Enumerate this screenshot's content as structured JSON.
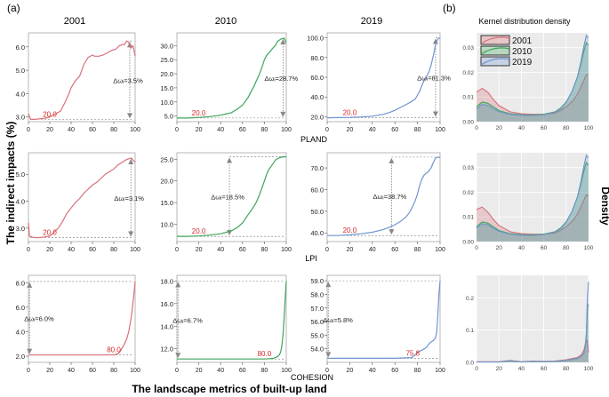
{
  "figure": {
    "panel_a_label": "(a)",
    "panel_b_label": "(b)",
    "y_label": "The indirect impacts (%)",
    "x_label": "The landscape metrics of built-up land",
    "density_title": "Kernel  distribution density",
    "density_ylabel": "Density",
    "years": [
      "2001",
      "2010",
      "2019"
    ],
    "metrics": [
      "PLAND",
      "LPI",
      "COHESION"
    ],
    "colors": {
      "2001": "#d9707a",
      "2010": "#3da55a",
      "2019": "#6f95cf"
    },
    "legend": [
      "2001",
      "2010",
      "2019"
    ]
  },
  "chart_data": [
    {
      "type": "line",
      "row": 0,
      "col": 0,
      "metric": "PLAND",
      "year": "2001",
      "xlim": [
        0,
        100
      ],
      "ylim": [
        2.8,
        6.6
      ],
      "yticks": [
        3.0,
        4.0,
        5.0,
        6.0
      ],
      "xticks": [
        0,
        20,
        40,
        60,
        80,
        100
      ],
      "x": [
        0,
        2,
        6,
        10,
        14,
        18,
        20,
        22,
        26,
        30,
        34,
        38,
        40,
        44,
        48,
        52,
        56,
        60,
        62,
        66,
        70,
        74,
        78,
        82,
        85,
        88,
        90,
        92,
        94,
        96,
        98,
        100
      ],
      "y": [
        3.15,
        2.9,
        2.9,
        2.92,
        2.94,
        2.97,
        3.0,
        3.05,
        3.15,
        3.25,
        3.6,
        4.0,
        4.25,
        4.55,
        4.75,
        5.25,
        5.55,
        5.65,
        5.6,
        5.6,
        5.65,
        5.75,
        5.85,
        5.9,
        6.05,
        6.1,
        6.1,
        6.25,
        6.2,
        5.95,
        6.05,
        5.6
      ],
      "threshold_label": "20.0",
      "threshold_x": 20,
      "delta_label": "Δωᵢ=3.5%",
      "delta_x": 95
    },
    {
      "type": "line",
      "row": 0,
      "col": 1,
      "metric": "PLAND",
      "year": "2010",
      "xlim": [
        0,
        100
      ],
      "ylim": [
        3,
        34.5
      ],
      "yticks": [
        5.0,
        10.0,
        15.0,
        20.0,
        25.0,
        30.0
      ],
      "xticks": [
        0,
        20,
        40,
        60,
        80,
        100
      ],
      "x": [
        0,
        10,
        20,
        30,
        40,
        50,
        55,
        60,
        65,
        68,
        70,
        72,
        75,
        78,
        80,
        82,
        85,
        88,
        90,
        92,
        95,
        98,
        100
      ],
      "y": [
        4.3,
        4.3,
        4.5,
        4.8,
        5.3,
        6.2,
        7.4,
        8.9,
        11.5,
        13.8,
        15.2,
        17.0,
        19.5,
        22.5,
        25.0,
        26.5,
        27.8,
        29.2,
        30.0,
        31.5,
        32.3,
        32.6,
        31.0
      ],
      "threshold_label": "20.0",
      "threshold_x": 20,
      "delta_label": "Δωᵢ=28.7%",
      "delta_x": 97
    },
    {
      "type": "line",
      "row": 0,
      "col": 2,
      "metric": "PLAND",
      "year": "2019",
      "xlim": [
        0,
        100
      ],
      "ylim": [
        15,
        105
      ],
      "yticks": [
        20.0,
        40.0,
        60.0,
        80.0,
        100.0
      ],
      "xticks": [
        0,
        20,
        40,
        60,
        80,
        100
      ],
      "x": [
        0,
        10,
        20,
        30,
        40,
        50,
        55,
        60,
        65,
        70,
        74,
        78,
        80,
        82,
        84,
        86,
        88,
        90,
        92,
        94,
        96,
        98,
        100
      ],
      "y": [
        19.0,
        19.1,
        19.3,
        19.8,
        20.6,
        22.5,
        24.3,
        26.5,
        29.5,
        32.5,
        35.0,
        38.0,
        42.0,
        46.0,
        52.0,
        57.0,
        61.0,
        65.0,
        72.0,
        82.0,
        93.0,
        99.0,
        100.0
      ],
      "threshold_label": "20.0",
      "threshold_x": 20,
      "delta_label": "Δωᵢ=81.3%",
      "delta_x": 96
    },
    {
      "type": "line",
      "row": 1,
      "col": 0,
      "metric": "LPI",
      "year": "2001",
      "xlim": [
        0,
        100
      ],
      "ylim": [
        2.5,
        5.8
      ],
      "yticks": [
        3.0,
        4.0,
        5.0
      ],
      "xticks": [
        0,
        20,
        40,
        60,
        80,
        100
      ],
      "x": [
        0,
        1,
        5,
        10,
        15,
        20,
        24,
        28,
        32,
        36,
        40,
        44,
        48,
        52,
        56,
        60,
        64,
        68,
        72,
        76,
        80,
        84,
        88,
        92,
        96,
        100
      ],
      "y": [
        3.2,
        2.7,
        2.65,
        2.65,
        2.67,
        2.7,
        2.85,
        3.0,
        3.25,
        3.55,
        3.75,
        3.95,
        4.1,
        4.3,
        4.45,
        4.6,
        4.7,
        4.85,
        5.0,
        5.1,
        5.2,
        5.35,
        5.45,
        5.55,
        5.6,
        5.45
      ],
      "threshold_label": "20.0",
      "threshold_x": 20,
      "delta_label": "Δωᵢ=3.1%",
      "delta_x": 96
    },
    {
      "type": "line",
      "row": 1,
      "col": 1,
      "metric": "LPI",
      "year": "2010",
      "xlim": [
        0,
        100
      ],
      "ylim": [
        6,
        26.5
      ],
      "yticks": [
        10.0,
        15.0,
        20.0,
        25.0
      ],
      "xticks": [
        0,
        20,
        40,
        60,
        80,
        100
      ],
      "x": [
        0,
        10,
        20,
        30,
        40,
        50,
        55,
        60,
        64,
        68,
        72,
        75,
        78,
        80,
        82,
        84,
        86,
        88,
        90,
        93,
        96,
        100
      ],
      "y": [
        7.2,
        7.2,
        7.3,
        7.5,
        7.8,
        8.5,
        9.2,
        10.3,
        11.8,
        13.2,
        14.8,
        16.5,
        18.5,
        20.0,
        21.5,
        22.6,
        23.3,
        24.0,
        24.8,
        25.3,
        25.5,
        25.6
      ],
      "threshold_label": "20.0",
      "threshold_x": 20,
      "delta_label": "Δωᵢ=18.5%",
      "delta_x": 48
    },
    {
      "type": "line",
      "row": 1,
      "col": 2,
      "metric": "LPI",
      "year": "2019",
      "xlim": [
        0,
        100
      ],
      "ylim": [
        36,
        77
      ],
      "yticks": [
        40.0,
        50.0,
        60.0,
        70.0
      ],
      "xticks": [
        0,
        20,
        40,
        60,
        80,
        100
      ],
      "x": [
        0,
        10,
        20,
        30,
        40,
        50,
        55,
        60,
        65,
        70,
        73,
        76,
        78,
        80,
        82,
        84,
        86,
        88,
        90,
        92,
        94,
        96,
        98,
        100
      ],
      "y": [
        38.8,
        38.8,
        39.1,
        39.6,
        40.3,
        41.6,
        42.6,
        43.8,
        45.3,
        47.5,
        49.5,
        52.5,
        55.0,
        58.0,
        62.0,
        65.0,
        66.8,
        67.6,
        68.5,
        70.0,
        72.5,
        74.5,
        75.0,
        74.8
      ],
      "threshold_label": "20.0",
      "threshold_x": 20,
      "delta_label": "Δωᵢ=38.7%",
      "delta_x": 57
    },
    {
      "type": "line",
      "row": 2,
      "col": 0,
      "metric": "COHESION",
      "year": "2001",
      "xlim": [
        0,
        100
      ],
      "ylim": [
        1.5,
        8.6
      ],
      "yticks": [
        2.0,
        4.0,
        6.0,
        8.0
      ],
      "xticks": [
        0,
        20,
        40,
        60,
        80,
        100
      ],
      "x": [
        0,
        20,
        40,
        60,
        80,
        84,
        86,
        88,
        90,
        92,
        94,
        95,
        96,
        97,
        98,
        99,
        100
      ],
      "y": [
        2.1,
        2.1,
        2.1,
        2.1,
        2.1,
        2.2,
        2.4,
        2.7,
        3.0,
        3.4,
        4.0,
        4.5,
        5.0,
        5.6,
        6.4,
        7.2,
        8.1
      ],
      "threshold_label": "80.0",
      "threshold_x": 80,
      "delta_label": "Δωᵢ=6.0%",
      "delta_x": 0
    },
    {
      "type": "line",
      "row": 2,
      "col": 1,
      "metric": "COHESION",
      "year": "2010",
      "xlim": [
        0,
        100
      ],
      "ylim": [
        10.8,
        18.5
      ],
      "yticks": [
        12.0,
        14.0,
        16.0,
        18.0
      ],
      "xticks": [
        0,
        20,
        40,
        60,
        80,
        100
      ],
      "x": [
        0,
        20,
        40,
        60,
        80,
        88,
        92,
        94,
        95,
        96,
        97,
        98,
        99,
        100
      ],
      "y": [
        11.1,
        11.1,
        11.1,
        11.1,
        11.1,
        11.15,
        11.3,
        11.5,
        11.8,
        12.3,
        13.2,
        14.6,
        16.5,
        18.0
      ],
      "threshold_label": "80.0",
      "threshold_x": 80,
      "delta_label": "Δωᵢ=6.7%",
      "delta_x": 0
    },
    {
      "type": "line",
      "row": 2,
      "col": 2,
      "metric": "COHESION",
      "year": "2019",
      "xlim": [
        0,
        100
      ],
      "ylim": [
        53.0,
        59.4
      ],
      "yticks": [
        54.0,
        55.0,
        56.0,
        57.0,
        58.0,
        59.0
      ],
      "xticks": [
        0,
        20,
        40,
        60,
        80,
        100
      ],
      "x": [
        0,
        20,
        40,
        60,
        75,
        78,
        80,
        84,
        88,
        90,
        92,
        94,
        96,
        97,
        98,
        99,
        100
      ],
      "y": [
        53.3,
        53.3,
        53.3,
        53.3,
        53.35,
        53.55,
        53.75,
        53.9,
        54.1,
        54.35,
        54.5,
        54.6,
        54.8,
        55.2,
        56.5,
        58.0,
        59.0
      ],
      "threshold_label": "75.8",
      "threshold_x": 75.8,
      "delta_label": "Δωᵢ=5.8%",
      "delta_x": 0
    },
    {
      "type": "area",
      "row": 0,
      "panel": "density",
      "metric": "PLAND",
      "xlim": [
        0,
        100
      ],
      "ylim": [
        0,
        0.036
      ],
      "yticks": [
        0.0,
        0.01,
        0.02,
        0.03
      ],
      "xticks": [
        0,
        20,
        40,
        60,
        80,
        100
      ],
      "x": [
        0,
        5,
        10,
        15,
        20,
        30,
        40,
        50,
        60,
        70,
        75,
        80,
        85,
        90,
        93,
        96,
        98,
        100
      ],
      "series": [
        {
          "name": "2001",
          "values": [
            0.012,
            0.0135,
            0.012,
            0.009,
            0.0065,
            0.004,
            0.0032,
            0.003,
            0.003,
            0.0035,
            0.0045,
            0.006,
            0.008,
            0.011,
            0.014,
            0.017,
            0.019,
            0.019
          ]
        },
        {
          "name": "2010",
          "values": [
            0.006,
            0.008,
            0.0075,
            0.006,
            0.0045,
            0.0032,
            0.0028,
            0.0027,
            0.003,
            0.004,
            0.0055,
            0.008,
            0.012,
            0.018,
            0.023,
            0.029,
            0.032,
            0.031
          ]
        },
        {
          "name": "2019",
          "values": [
            0.005,
            0.007,
            0.0065,
            0.0052,
            0.004,
            0.003,
            0.0026,
            0.0025,
            0.0028,
            0.0038,
            0.0052,
            0.0078,
            0.012,
            0.018,
            0.024,
            0.031,
            0.035,
            0.034
          ]
        }
      ]
    },
    {
      "type": "area",
      "row": 1,
      "panel": "density",
      "metric": "LPI",
      "xlim": [
        0,
        100
      ],
      "ylim": [
        0,
        0.036
      ],
      "yticks": [
        0.0,
        0.01,
        0.02,
        0.03
      ],
      "xticks": [
        0,
        20,
        40,
        60,
        80,
        100
      ],
      "x": [
        0,
        5,
        10,
        15,
        20,
        30,
        40,
        50,
        60,
        70,
        75,
        80,
        85,
        90,
        93,
        96,
        98,
        100
      ],
      "series": [
        {
          "name": "2001",
          "values": [
            0.013,
            0.014,
            0.012,
            0.009,
            0.0065,
            0.004,
            0.0032,
            0.003,
            0.003,
            0.0035,
            0.0045,
            0.006,
            0.008,
            0.011,
            0.014,
            0.017,
            0.019,
            0.0185
          ]
        },
        {
          "name": "2010",
          "values": [
            0.006,
            0.008,
            0.0075,
            0.006,
            0.0045,
            0.0032,
            0.0028,
            0.0027,
            0.003,
            0.004,
            0.0055,
            0.008,
            0.012,
            0.018,
            0.023,
            0.029,
            0.032,
            0.031
          ]
        },
        {
          "name": "2019",
          "values": [
            0.0055,
            0.0072,
            0.0068,
            0.0054,
            0.0042,
            0.003,
            0.0026,
            0.0025,
            0.0028,
            0.0038,
            0.0052,
            0.0078,
            0.012,
            0.018,
            0.024,
            0.031,
            0.035,
            0.034
          ]
        }
      ]
    },
    {
      "type": "area",
      "row": 2,
      "panel": "density",
      "metric": "COHESION",
      "xlim": [
        0,
        100
      ],
      "ylim": [
        0,
        0.27
      ],
      "yticks": [
        0.0,
        0.1,
        0.2
      ],
      "xticks": [
        0,
        20,
        40,
        60,
        80,
        100
      ],
      "x": [
        0,
        10,
        20,
        30,
        35,
        40,
        50,
        60,
        70,
        80,
        90,
        94,
        96,
        97,
        98,
        99,
        100
      ],
      "series": [
        {
          "name": "2001",
          "values": [
            0.002,
            0.002,
            0.002,
            0.006,
            0.004,
            0.002,
            0.004,
            0.003,
            0.004,
            0.008,
            0.015,
            0.025,
            0.04,
            0.055,
            0.07,
            0.065,
            0.03
          ]
        },
        {
          "name": "2010",
          "values": [
            0.001,
            0.001,
            0.001,
            0.004,
            0.003,
            0.001,
            0.003,
            0.002,
            0.003,
            0.006,
            0.012,
            0.02,
            0.03,
            0.05,
            0.08,
            0.17,
            0.18
          ]
        },
        {
          "name": "2019",
          "values": [
            0.001,
            0.001,
            0.001,
            0.005,
            0.003,
            0.001,
            0.003,
            0.002,
            0.003,
            0.006,
            0.012,
            0.02,
            0.03,
            0.05,
            0.09,
            0.2,
            0.25
          ]
        }
      ]
    }
  ]
}
